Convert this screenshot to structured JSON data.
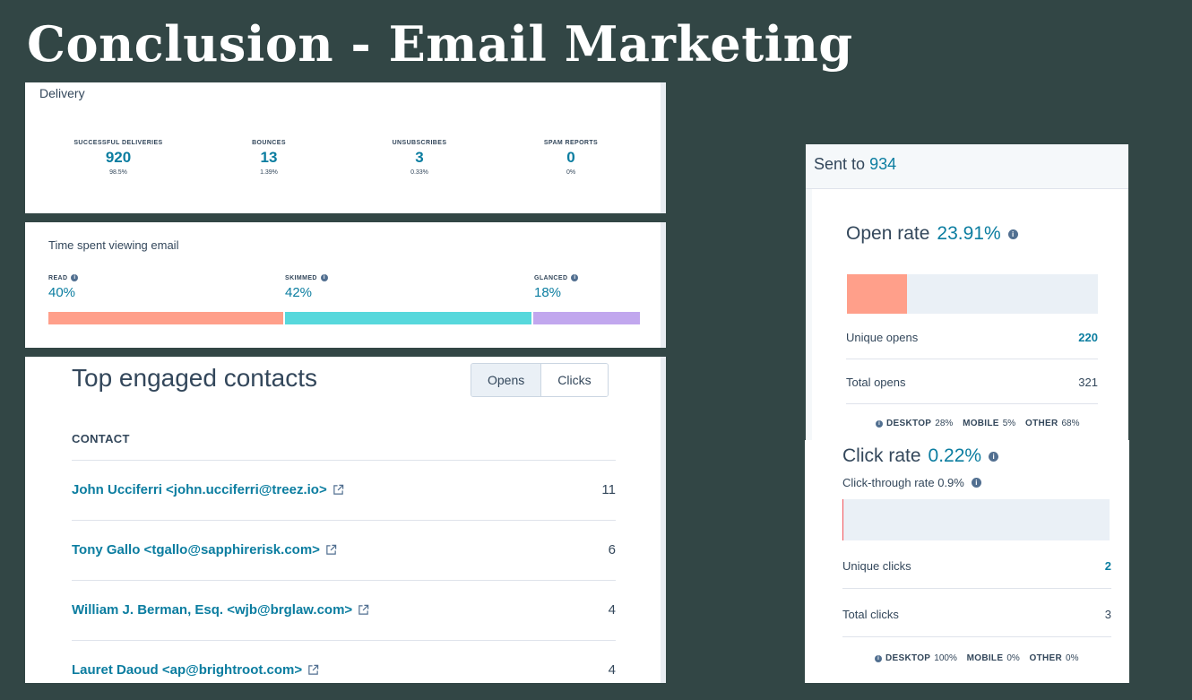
{
  "slide": {
    "title": "Conclusion - Email Marketing"
  },
  "delivery": {
    "title": "Delivery",
    "stats": [
      {
        "label": "SUCCESSFUL DELIVERIES",
        "value": "920",
        "percent": "98.5%"
      },
      {
        "label": "BOUNCES",
        "value": "13",
        "percent": "1.39%"
      },
      {
        "label": "UNSUBSCRIBES",
        "value": "3",
        "percent": "0.33%"
      },
      {
        "label": "SPAM REPORTS",
        "value": "0",
        "percent": "0%"
      }
    ]
  },
  "time_spent": {
    "title": "Time spent viewing email",
    "segments": [
      {
        "label": "READ",
        "value": "40%",
        "fraction": 0.4,
        "color": "#ff9f8a"
      },
      {
        "label": "SKIMMED",
        "value": "42%",
        "fraction": 0.42,
        "color": "#57d8dc"
      },
      {
        "label": "GLANCED",
        "value": "18%",
        "fraction": 0.18,
        "color": "#c1a7ee"
      }
    ]
  },
  "contacts": {
    "title": "Top engaged contacts",
    "toggle": {
      "opens": "Opens",
      "clicks": "Clicks",
      "active": "opens"
    },
    "column_header": "CONTACT",
    "rows": [
      {
        "name": "John Ucciferri <john.ucciferri@treez.io>",
        "count": "11"
      },
      {
        "name": "Tony Gallo <tgallo@sapphirerisk.com>",
        "count": "6"
      },
      {
        "name": "William J. Berman, Esq. <wjb@brglaw.com>",
        "count": "4"
      },
      {
        "name": "Lauret Daoud <ap@brightroot.com>",
        "count": "4"
      }
    ]
  },
  "sent": {
    "label": "Sent to",
    "count": "934"
  },
  "open_rate": {
    "label": "Open rate",
    "value": "23.91%",
    "fill_fraction": 0.24,
    "fill_color": "#ff9f8a",
    "unique_label": "Unique opens",
    "unique_value": "220",
    "total_label": "Total opens",
    "total_value": "321",
    "devices": {
      "desktop_label": "DESKTOP",
      "desktop": "28%",
      "mobile_label": "MOBILE",
      "mobile": "5%",
      "other_label": "OTHER",
      "other": "68%"
    }
  },
  "click_rate": {
    "label": "Click rate",
    "value": "0.22%",
    "ctr_label": "Click-through rate 0.9%",
    "fill_fraction": 0.0022,
    "fill_color": "#f2545b",
    "unique_label": "Unique clicks",
    "unique_value": "2",
    "total_label": "Total clicks",
    "total_value": "3",
    "devices": {
      "desktop_label": "DESKTOP",
      "desktop": "100%",
      "mobile_label": "MOBILE",
      "mobile": "0%",
      "other_label": "OTHER",
      "other": "0%"
    }
  },
  "colors": {
    "accent": "#0b7da0",
    "background": "#324645",
    "text": "#33475b"
  }
}
